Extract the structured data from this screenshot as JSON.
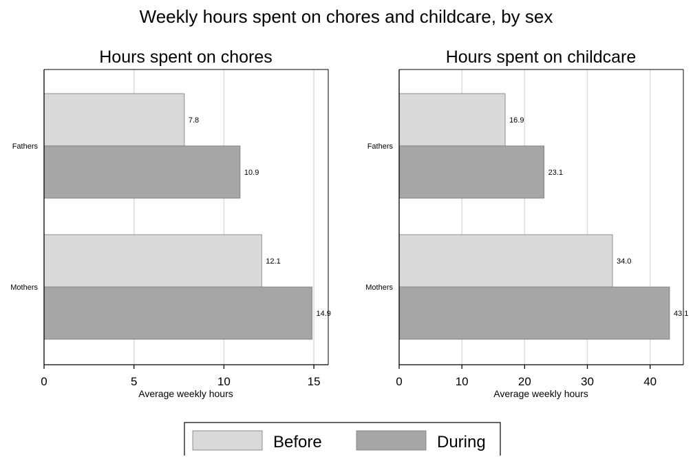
{
  "title": "Weekly hours spent on chores and childcare, by sex",
  "legend": {
    "items": [
      {
        "label": "Before",
        "color": "#d9d9d9"
      },
      {
        "label": "During",
        "color": "#a6a6a6"
      }
    ]
  },
  "colors": {
    "before": "#d9d9d9",
    "during": "#a6a6a6",
    "grid": "#dcdcdc",
    "axis": "#000000"
  },
  "chart_data": [
    {
      "type": "bar",
      "orientation": "horizontal",
      "title": "Hours spent on chores",
      "xlabel": "Average weekly hours",
      "ylabel": "",
      "categories": [
        "Fathers",
        "Mothers"
      ],
      "series": [
        {
          "name": "Before",
          "values": [
            7.8,
            12.1
          ]
        },
        {
          "name": "During",
          "values": [
            10.9,
            14.9
          ]
        }
      ],
      "value_labels": [
        [
          "7.8",
          "12.1"
        ],
        [
          "10.9",
          "14.9"
        ]
      ],
      "xlim": [
        0,
        15.8
      ],
      "xticks": [
        0,
        5,
        10,
        15
      ],
      "xtick_labels": [
        "0",
        "5",
        "10",
        "15"
      ],
      "grid": "vertical"
    },
    {
      "type": "bar",
      "orientation": "horizontal",
      "title": "Hours spent on childcare",
      "xlabel": "Average weekly hours",
      "ylabel": "",
      "categories": [
        "Fathers",
        "Mothers"
      ],
      "series": [
        {
          "name": "Before",
          "values": [
            16.9,
            34.0
          ]
        },
        {
          "name": "During",
          "values": [
            23.1,
            43.1
          ]
        }
      ],
      "value_labels": [
        [
          "16.9",
          "34.0"
        ],
        [
          "23.1",
          "43.1"
        ]
      ],
      "xlim": [
        0,
        45.3
      ],
      "xticks": [
        0,
        10,
        20,
        30,
        40
      ],
      "xtick_labels": [
        "0",
        "10",
        "20",
        "30",
        "40"
      ],
      "grid": "vertical"
    }
  ]
}
